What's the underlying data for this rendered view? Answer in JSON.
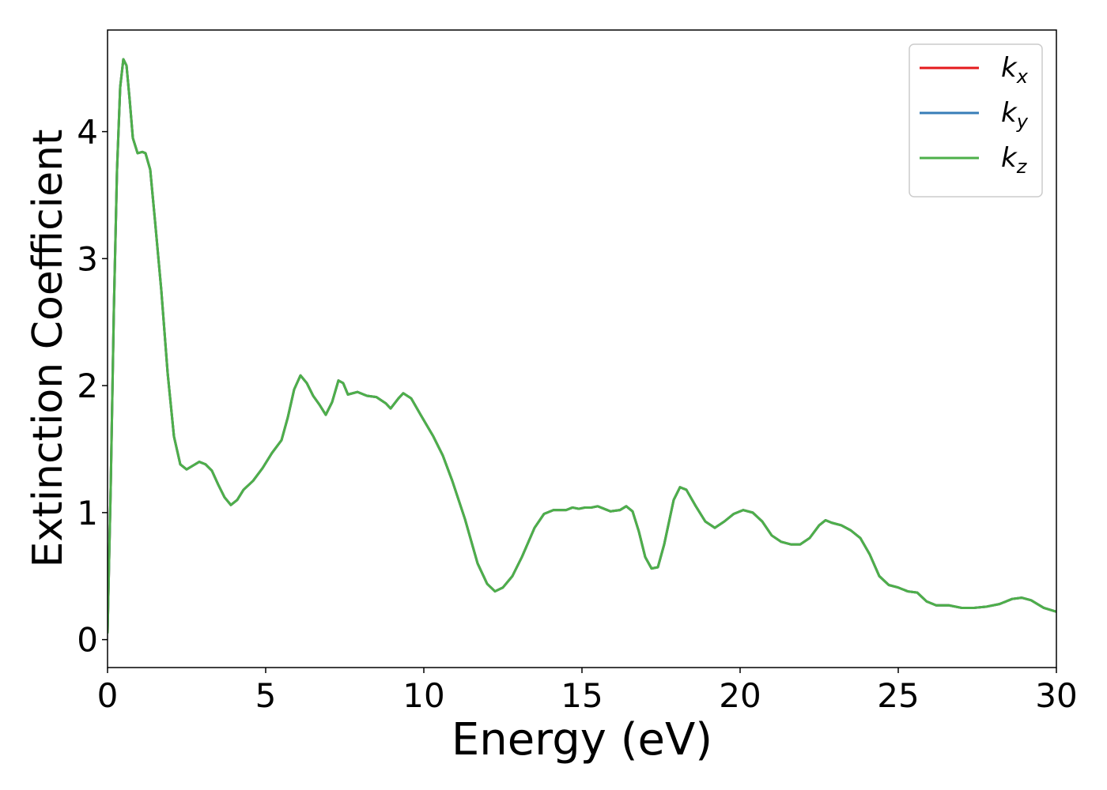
{
  "chart_data": {
    "type": "line",
    "xlabel": "Energy (eV)",
    "ylabel": "Extinction Coefficient",
    "x": [
      0,
      0.1,
      0.2,
      0.3,
      0.4,
      0.5,
      0.6,
      0.7,
      0.8,
      0.95,
      1.1,
      1.2,
      1.35,
      1.5,
      1.7,
      1.9,
      2.1,
      2.3,
      2.5,
      2.7,
      2.9,
      3.1,
      3.3,
      3.5,
      3.7,
      3.9,
      4.1,
      4.3,
      4.6,
      4.9,
      5.2,
      5.5,
      5.7,
      5.9,
      6.1,
      6.3,
      6.5,
      6.7,
      6.9,
      7.1,
      7.3,
      7.45,
      7.6,
      7.9,
      8.2,
      8.5,
      8.8,
      8.95,
      9.2,
      9.35,
      9.6,
      9.9,
      10.3,
      10.6,
      10.9,
      11.3,
      11.7,
      12.0,
      12.25,
      12.5,
      12.8,
      13.1,
      13.5,
      13.8,
      14.1,
      14.5,
      14.7,
      14.9,
      15.1,
      15.3,
      15.5,
      15.7,
      15.9,
      16.2,
      16.4,
      16.6,
      16.8,
      17.0,
      17.2,
      17.4,
      17.6,
      17.9,
      18.1,
      18.3,
      18.6,
      18.9,
      19.2,
      19.5,
      19.8,
      20.1,
      20.4,
      20.7,
      21.0,
      21.3,
      21.6,
      21.9,
      22.2,
      22.5,
      22.7,
      22.9,
      23.2,
      23.5,
      23.8,
      24.1,
      24.4,
      24.7,
      25.0,
      25.3,
      25.6,
      25.9,
      26.2,
      26.6,
      27.0,
      27.4,
      27.8,
      28.2,
      28.6,
      28.9,
      29.2,
      29.6,
      30.0
    ],
    "series": [
      {
        "name": "k_x",
        "color": "#e41a1c",
        "values": [
          0.05,
          1.2,
          2.6,
          3.7,
          4.35,
          4.57,
          4.52,
          4.25,
          3.95,
          3.83,
          3.84,
          3.83,
          3.7,
          3.3,
          2.75,
          2.1,
          1.6,
          1.38,
          1.34,
          1.37,
          1.4,
          1.38,
          1.33,
          1.22,
          1.12,
          1.06,
          1.1,
          1.18,
          1.25,
          1.35,
          1.47,
          1.57,
          1.75,
          1.97,
          2.08,
          2.02,
          1.92,
          1.85,
          1.77,
          1.87,
          2.04,
          2.02,
          1.93,
          1.95,
          1.92,
          1.91,
          1.86,
          1.82,
          1.9,
          1.94,
          1.9,
          1.77,
          1.6,
          1.45,
          1.25,
          0.95,
          0.6,
          0.44,
          0.38,
          0.41,
          0.5,
          0.65,
          0.88,
          0.99,
          1.02,
          1.02,
          1.04,
          1.03,
          1.04,
          1.04,
          1.05,
          1.03,
          1.01,
          1.02,
          1.05,
          1.01,
          0.85,
          0.65,
          0.56,
          0.57,
          0.75,
          1.1,
          1.2,
          1.18,
          1.05,
          0.93,
          0.88,
          0.93,
          0.99,
          1.02,
          1.0,
          0.93,
          0.82,
          0.77,
          0.75,
          0.75,
          0.8,
          0.9,
          0.94,
          0.92,
          0.9,
          0.86,
          0.8,
          0.67,
          0.5,
          0.43,
          0.41,
          0.38,
          0.37,
          0.3,
          0.27,
          0.27,
          0.25,
          0.25,
          0.26,
          0.28,
          0.32,
          0.33,
          0.31,
          0.25,
          0.22
        ]
      },
      {
        "name": "k_y",
        "color": "#377eb8",
        "values": [
          0.05,
          1.2,
          2.6,
          3.7,
          4.35,
          4.57,
          4.52,
          4.25,
          3.95,
          3.83,
          3.84,
          3.83,
          3.7,
          3.3,
          2.75,
          2.1,
          1.6,
          1.38,
          1.34,
          1.37,
          1.4,
          1.38,
          1.33,
          1.22,
          1.12,
          1.06,
          1.1,
          1.18,
          1.25,
          1.35,
          1.47,
          1.57,
          1.75,
          1.97,
          2.08,
          2.02,
          1.92,
          1.85,
          1.77,
          1.87,
          2.04,
          2.02,
          1.93,
          1.95,
          1.92,
          1.91,
          1.86,
          1.82,
          1.9,
          1.94,
          1.9,
          1.77,
          1.6,
          1.45,
          1.25,
          0.95,
          0.6,
          0.44,
          0.38,
          0.41,
          0.5,
          0.65,
          0.88,
          0.99,
          1.02,
          1.02,
          1.04,
          1.03,
          1.04,
          1.04,
          1.05,
          1.03,
          1.01,
          1.02,
          1.05,
          1.01,
          0.85,
          0.65,
          0.56,
          0.57,
          0.75,
          1.1,
          1.2,
          1.18,
          1.05,
          0.93,
          0.88,
          0.93,
          0.99,
          1.02,
          1.0,
          0.93,
          0.82,
          0.77,
          0.75,
          0.75,
          0.8,
          0.9,
          0.94,
          0.92,
          0.9,
          0.86,
          0.8,
          0.67,
          0.5,
          0.43,
          0.41,
          0.38,
          0.37,
          0.3,
          0.27,
          0.27,
          0.25,
          0.25,
          0.26,
          0.28,
          0.32,
          0.33,
          0.31,
          0.25,
          0.22
        ]
      },
      {
        "name": "k_z",
        "color": "#4daf4a",
        "values": [
          0.05,
          1.2,
          2.6,
          3.7,
          4.35,
          4.57,
          4.52,
          4.25,
          3.95,
          3.83,
          3.84,
          3.83,
          3.7,
          3.3,
          2.75,
          2.1,
          1.6,
          1.38,
          1.34,
          1.37,
          1.4,
          1.38,
          1.33,
          1.22,
          1.12,
          1.06,
          1.1,
          1.18,
          1.25,
          1.35,
          1.47,
          1.57,
          1.75,
          1.97,
          2.08,
          2.02,
          1.92,
          1.85,
          1.77,
          1.87,
          2.04,
          2.02,
          1.93,
          1.95,
          1.92,
          1.91,
          1.86,
          1.82,
          1.9,
          1.94,
          1.9,
          1.77,
          1.6,
          1.45,
          1.25,
          0.95,
          0.6,
          0.44,
          0.38,
          0.41,
          0.5,
          0.65,
          0.88,
          0.99,
          1.02,
          1.02,
          1.04,
          1.03,
          1.04,
          1.04,
          1.05,
          1.03,
          1.01,
          1.02,
          1.05,
          1.01,
          0.85,
          0.65,
          0.56,
          0.57,
          0.75,
          1.1,
          1.2,
          1.18,
          1.05,
          0.93,
          0.88,
          0.93,
          0.99,
          1.02,
          1.0,
          0.93,
          0.82,
          0.77,
          0.75,
          0.75,
          0.8,
          0.9,
          0.94,
          0.92,
          0.9,
          0.86,
          0.8,
          0.67,
          0.5,
          0.43,
          0.41,
          0.38,
          0.37,
          0.3,
          0.27,
          0.27,
          0.25,
          0.25,
          0.26,
          0.28,
          0.32,
          0.33,
          0.31,
          0.25,
          0.22
        ]
      }
    ],
    "xlim": [
      0,
      30
    ],
    "xticks": [
      0,
      5,
      10,
      15,
      20,
      25,
      30
    ],
    "ylim": [
      -0.22,
      4.8
    ],
    "yticks": [
      0,
      1,
      2,
      3,
      4
    ],
    "grid": false,
    "legend": "upper right"
  }
}
